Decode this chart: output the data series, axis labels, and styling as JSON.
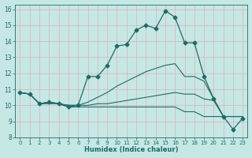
{
  "title": "",
  "xlabel": "Humidex (Indice chaleur)",
  "ylabel": "",
  "xlim": [
    -0.5,
    23.5
  ],
  "ylim": [
    8,
    16.3
  ],
  "xticks": [
    0,
    1,
    2,
    3,
    4,
    5,
    6,
    7,
    8,
    9,
    10,
    11,
    12,
    13,
    14,
    15,
    16,
    17,
    18,
    19,
    20,
    21,
    22,
    23
  ],
  "yticks": [
    8,
    9,
    10,
    11,
    12,
    13,
    14,
    15,
    16
  ],
  "bg_color": "#c5e8e5",
  "line_color": "#1e6b68",
  "grid_color": "#ddb8b8",
  "lines": [
    {
      "x": [
        0,
        1,
        2,
        3,
        4,
        5,
        6,
        7,
        8,
        9,
        10,
        11,
        12,
        13,
        14,
        15,
        16,
        17,
        18,
        19,
        20,
        21,
        22,
        23
      ],
      "y": [
        10.8,
        10.7,
        10.1,
        10.1,
        10.1,
        9.9,
        9.9,
        9.9,
        9.9,
        9.9,
        9.9,
        9.9,
        9.9,
        9.9,
        9.9,
        9.9,
        9.9,
        9.6,
        9.6,
        9.3,
        9.3,
        9.3,
        9.3,
        9.3
      ],
      "marker": null,
      "lw": 0.8
    },
    {
      "x": [
        0,
        1,
        2,
        3,
        4,
        5,
        6,
        7,
        8,
        9,
        10,
        11,
        12,
        13,
        14,
        15,
        16,
        17,
        18,
        19,
        20,
        21,
        22,
        23
      ],
      "y": [
        10.8,
        10.7,
        10.1,
        10.2,
        10.1,
        10.0,
        10.0,
        10.0,
        10.1,
        10.1,
        10.2,
        10.3,
        10.4,
        10.5,
        10.6,
        10.7,
        10.8,
        10.7,
        10.7,
        10.4,
        10.3,
        9.3,
        9.3,
        9.3
      ],
      "marker": null,
      "lw": 0.8
    },
    {
      "x": [
        0,
        1,
        2,
        3,
        4,
        5,
        6,
        7,
        8,
        9,
        10,
        11,
        12,
        13,
        14,
        15,
        16,
        17,
        18,
        19,
        20,
        21,
        22,
        23
      ],
      "y": [
        10.8,
        10.7,
        10.1,
        10.2,
        10.1,
        10.0,
        10.0,
        10.2,
        10.5,
        10.8,
        11.2,
        11.5,
        11.8,
        12.1,
        12.3,
        12.5,
        12.6,
        11.8,
        11.8,
        11.5,
        10.4,
        9.3,
        9.3,
        9.3
      ],
      "marker": null,
      "lw": 0.8
    },
    {
      "x": [
        0,
        1,
        2,
        3,
        4,
        5,
        6,
        7,
        8,
        9,
        10,
        11,
        12,
        13,
        14,
        15,
        16,
        17,
        18,
        19,
        20,
        21,
        22,
        23
      ],
      "y": [
        10.8,
        10.7,
        10.1,
        10.2,
        10.1,
        9.9,
        10.0,
        11.8,
        11.8,
        12.5,
        13.7,
        13.8,
        14.7,
        15.0,
        14.8,
        15.9,
        15.5,
        13.9,
        13.9,
        11.8,
        10.4,
        9.3,
        8.5,
        9.2
      ],
      "marker": "D",
      "markersize": 2.5,
      "lw": 0.9
    }
  ]
}
